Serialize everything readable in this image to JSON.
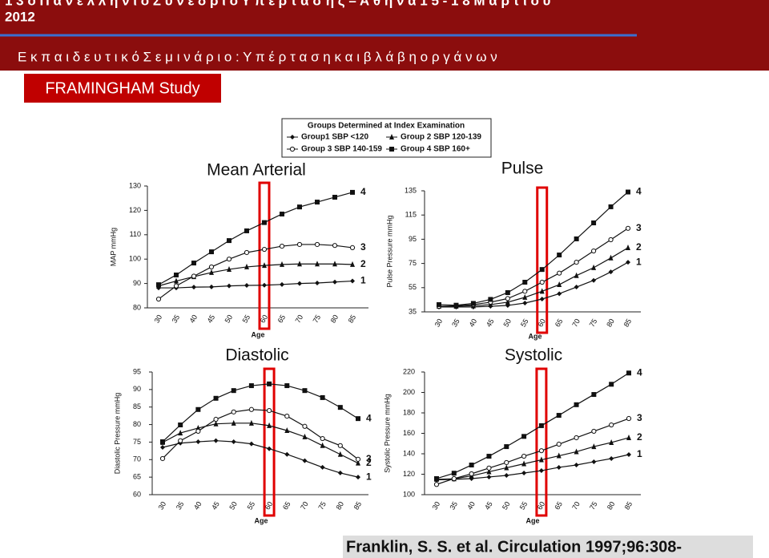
{
  "header": {
    "conference": "1 3 ο Π α ν ε λ λ ή ν ι ο Σ υ ν έ δ ρ ι ο Υ π έ ρ τ α σ η ς – Α θ ή ν α 1 5 - 1 8 Μ α ρ τ ί ο υ",
    "year": "2012",
    "subtitle": "Ε κ π α ι δ ε υ τ ι κ ό Σ ε μ ι ν ά ρ ι ο : Υ π έ ρ τ α σ η κ α ι β λ ά β η ο ρ γ ά ν ω ν",
    "section": "FRAMINGHAM Study"
  },
  "legend": {
    "title": "Groups Determined at Index Examination",
    "entries": [
      "Group1 SBP <120",
      "Group 2 SBP 120-139",
      "Group 3 SBP 140-159",
      "Group 4 SBP 160+"
    ],
    "markers": [
      "diamond",
      "triangle",
      "circle",
      "square"
    ]
  },
  "citation": "Franklin, S. S. et al. Circulation 1997;96:308-",
  "chart_data": [
    {
      "type": "line",
      "title": "Mean Arterial",
      "y_label": "MAP mmHg",
      "x_label": "Age",
      "categories": [
        "30",
        "35",
        "40",
        "45",
        "50",
        "55",
        "60",
        "65",
        "70",
        "75",
        "80",
        "85"
      ],
      "ylim": [
        80,
        130
      ],
      "yticks": [
        80,
        90,
        100,
        110,
        120,
        130
      ],
      "series": [
        {
          "name": "1",
          "marker": "diamond",
          "color": "#111",
          "values": [
            88.2,
            88.2,
            88.5,
            88.6,
            89,
            89.2,
            89.3,
            89.6,
            90,
            90.2,
            90.6,
            91
          ]
        },
        {
          "name": "2",
          "marker": "triangle",
          "color": "#111",
          "values": [
            89,
            91,
            92.8,
            94.5,
            95.8,
            96.8,
            97.4,
            97.8,
            98,
            98,
            98,
            97.8
          ]
        },
        {
          "name": "3",
          "marker": "circle",
          "color": "#111",
          "values": [
            83.6,
            89,
            93,
            96.8,
            100,
            102.7,
            104,
            105.3,
            106,
            106,
            105.6,
            104.7
          ]
        },
        {
          "name": "4",
          "marker": "square",
          "color": "#111",
          "values": [
            89.5,
            93.5,
            98.4,
            103,
            107.6,
            111.6,
            115,
            118.5,
            121.4,
            123.4,
            125.4,
            127.4
          ]
        }
      ]
    },
    {
      "type": "line",
      "title": "Pulse",
      "y_label": "Pulse Pressure mmHg",
      "x_label": "Age",
      "categories": [
        "30",
        "35",
        "40",
        "45",
        "50",
        "55",
        "60",
        "65",
        "70",
        "75",
        "80",
        "85"
      ],
      "ylim": [
        35,
        135
      ],
      "yticks": [
        35,
        55,
        75,
        95,
        115,
        135
      ],
      "series": [
        {
          "name": "1",
          "marker": "diamond",
          "color": "#111",
          "values": [
            39,
            39,
            39,
            39.6,
            40.3,
            42.3,
            45.6,
            50,
            55.5,
            61,
            68,
            76
          ]
        },
        {
          "name": "2",
          "marker": "triangle",
          "color": "#111",
          "values": [
            39.6,
            39.6,
            40,
            41,
            43,
            47,
            52,
            57.5,
            65,
            71.5,
            79.5,
            88
          ]
        },
        {
          "name": "3",
          "marker": "circle",
          "color": "#111",
          "values": [
            39.6,
            40,
            41,
            43,
            46,
            52,
            59.5,
            67,
            76,
            85.3,
            94.6,
            104
          ]
        },
        {
          "name": "4",
          "marker": "square",
          "color": "#111",
          "values": [
            41,
            40.5,
            42,
            45.3,
            50.9,
            59.5,
            70,
            82,
            95.3,
            108.5,
            121.8,
            134
          ]
        }
      ]
    },
    {
      "type": "line",
      "title": "Diastolic",
      "y_label": "Diastolic Pressure mmHg",
      "x_label": "Age",
      "categories": [
        "30",
        "35",
        "40",
        "45",
        "50",
        "55",
        "60",
        "65",
        "70",
        "75",
        "80",
        "85"
      ],
      "ylim": [
        60,
        95
      ],
      "yticks": [
        60,
        65,
        70,
        75,
        80,
        85,
        90,
        95
      ],
      "series": [
        {
          "name": "1",
          "marker": "diamond",
          "color": "#111",
          "values": [
            73.5,
            74.7,
            75.1,
            75.4,
            75.1,
            74.5,
            73.1,
            71.5,
            69.7,
            67.8,
            66.2,
            65
          ]
        },
        {
          "name": "2",
          "marker": "triangle",
          "color": "#111",
          "values": [
            74.9,
            77.6,
            79,
            80.2,
            80.4,
            80.4,
            79.7,
            78.3,
            76.5,
            74,
            71.5,
            69
          ]
        },
        {
          "name": "3",
          "marker": "circle",
          "color": "#111",
          "values": [
            70.3,
            75.4,
            78.1,
            81.5,
            83.6,
            84.3,
            84,
            82.4,
            79.5,
            76,
            74,
            70.1
          ]
        },
        {
          "name": "4",
          "marker": "square",
          "color": "#111",
          "values": [
            75.1,
            79.9,
            84.3,
            87.5,
            89.7,
            91.1,
            91.6,
            91.1,
            89.7,
            87.7,
            84.9,
            81.7
          ]
        }
      ]
    },
    {
      "type": "line",
      "title": "Systolic",
      "y_label": "Systolic Pressure mmHg",
      "x_label": "Age",
      "categories": [
        "30",
        "35",
        "40",
        "45",
        "50",
        "55",
        "60",
        "65",
        "70",
        "75",
        "80",
        "85"
      ],
      "ylim": [
        100,
        220
      ],
      "yticks": [
        100,
        120,
        140,
        160,
        180,
        200,
        220
      ],
      "series": [
        {
          "name": "1",
          "marker": "diamond",
          "color": "#111",
          "values": [
            114.5,
            115,
            115.7,
            117.3,
            118.8,
            121.2,
            123.5,
            126.7,
            129,
            132.2,
            135.3,
            139.2
          ]
        },
        {
          "name": "2",
          "marker": "triangle",
          "color": "#111",
          "values": [
            115,
            115.5,
            118.4,
            122.4,
            126.3,
            130.2,
            134.1,
            138,
            142,
            147,
            151,
            155.7
          ]
        },
        {
          "name": "3",
          "marker": "circle",
          "color": "#111",
          "values": [
            110,
            115.7,
            120.4,
            126,
            131.4,
            137.6,
            143,
            149.4,
            155.7,
            162,
            168.2,
            174.5
          ]
        },
        {
          "name": "4",
          "marker": "square",
          "color": "#111",
          "values": [
            115.7,
            121,
            129,
            137.6,
            147,
            157,
            167.5,
            177.6,
            188,
            198,
            208,
            219
          ]
        }
      ]
    }
  ]
}
